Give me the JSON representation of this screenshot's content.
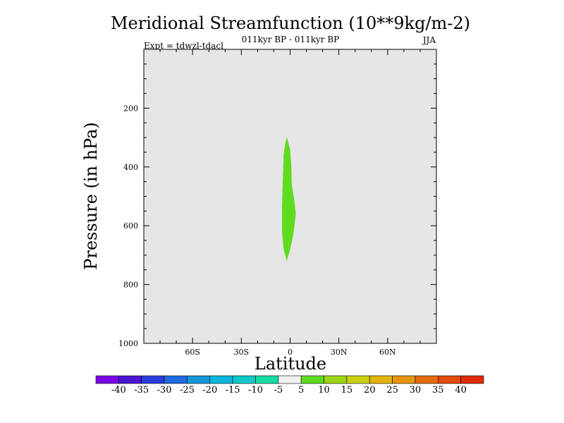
{
  "chart_data": {
    "type": "heatmap",
    "title": "Meridional Streamfunction (10**9kg/m-2)",
    "subtitle": "011kyr BP - 011kyr BP",
    "experiment_label": "Expt = tdwzl-tdacl",
    "season": "JJA",
    "xlabel": "Latitude",
    "ylabel": "Pressure (in hPa)",
    "xlim": [
      -90,
      90
    ],
    "ylim": [
      1000,
      0
    ],
    "x_ticks": [
      {
        "value": -60,
        "label": "60S"
      },
      {
        "value": -30,
        "label": "30S"
      },
      {
        "value": 0,
        "label": "0"
      },
      {
        "value": 30,
        "label": "30N"
      },
      {
        "value": 60,
        "label": "60N"
      }
    ],
    "y_ticks": [
      {
        "value": 200,
        "label": "200"
      },
      {
        "value": 400,
        "label": "400"
      },
      {
        "value": 600,
        "label": "600"
      },
      {
        "value": 800,
        "label": "800"
      },
      {
        "value": 1000,
        "label": "1000"
      }
    ],
    "background_level": "-5 to 5",
    "background_color": "#e6e6e6",
    "regions": [
      {
        "level": "5 to 10",
        "color": "#5fdc20",
        "boundary": [
          [
            -2,
            300
          ],
          [
            0,
            340
          ],
          [
            0.8,
            400
          ],
          [
            1,
            460
          ],
          [
            2.5,
            510
          ],
          [
            3.5,
            560
          ],
          [
            2,
            630
          ],
          [
            0,
            680
          ],
          [
            -2,
            720
          ],
          [
            -4,
            680
          ],
          [
            -5,
            620
          ],
          [
            -5,
            540
          ],
          [
            -4.5,
            450
          ],
          [
            -4,
            360
          ],
          [
            -3,
            320
          ]
        ]
      }
    ],
    "colorbar": {
      "boundaries": [
        "-40",
        "-35",
        "-30",
        "-25",
        "-20",
        "-15",
        "-10",
        "-5",
        "5",
        "10",
        "15",
        "20",
        "25",
        "30",
        "35",
        "40"
      ],
      "colors": [
        "#7a00e6",
        "#4b14d2",
        "#2a3cd8",
        "#1e6ae0",
        "#1496d8",
        "#0ab4dc",
        "#10c8c8",
        "#14dca0",
        "#f0f0f0",
        "#5fdc20",
        "#9ad414",
        "#cad012",
        "#e2b40c",
        "#e69610",
        "#e26a0c",
        "#e04a0a",
        "#dc2c08"
      ]
    }
  }
}
